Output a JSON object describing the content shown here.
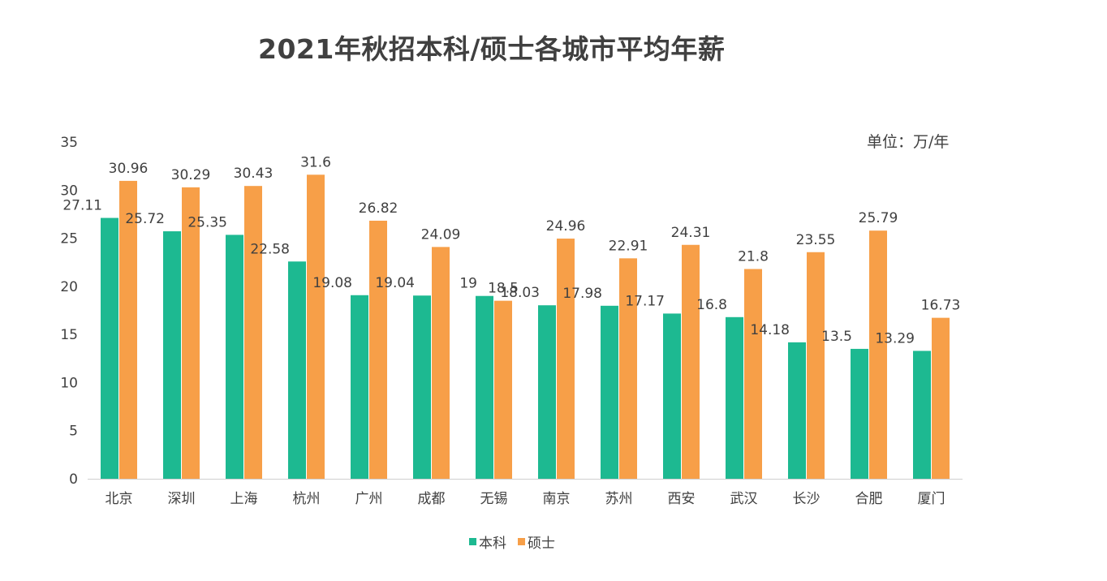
{
  "title": "2021年秋招本科/硕士各城市平均年薪",
  "unit_label": "单位：万/年",
  "colors": {
    "bachelor": "#1DB991",
    "master": "#F79F48",
    "axis": "#cfcfcf",
    "text": "#404040"
  },
  "legend": [
    {
      "name": "本科",
      "color": "#1DB991"
    },
    {
      "name": "硕士",
      "color": "#F79F48"
    }
  ],
  "chart_data": {
    "type": "bar",
    "title": "2021年秋招本科/硕士各城市平均年薪",
    "unit": "单位：万/年",
    "categories": [
      "北京",
      "深圳",
      "上海",
      "杭州",
      "广州",
      "成都",
      "无锡",
      "南京",
      "苏州",
      "西安",
      "武汉",
      "长沙",
      "合肥",
      "厦门"
    ],
    "series": [
      {
        "name": "本科",
        "values": [
          27.11,
          25.72,
          25.35,
          22.58,
          19.08,
          19.04,
          19,
          18.03,
          17.98,
          17.17,
          16.8,
          14.18,
          13.5,
          13.29
        ]
      },
      {
        "name": "硕士",
        "values": [
          30.96,
          30.29,
          30.43,
          31.6,
          26.82,
          24.09,
          18.5,
          24.96,
          22.91,
          24.31,
          21.8,
          23.55,
          25.79,
          16.73
        ]
      }
    ],
    "ylim": [
      0,
      35
    ],
    "yticks": [
      0,
      5,
      10,
      15,
      20,
      25,
      30,
      35
    ],
    "xlabel": "",
    "ylabel": "",
    "grid": false,
    "legend_position": "bottom-center"
  }
}
